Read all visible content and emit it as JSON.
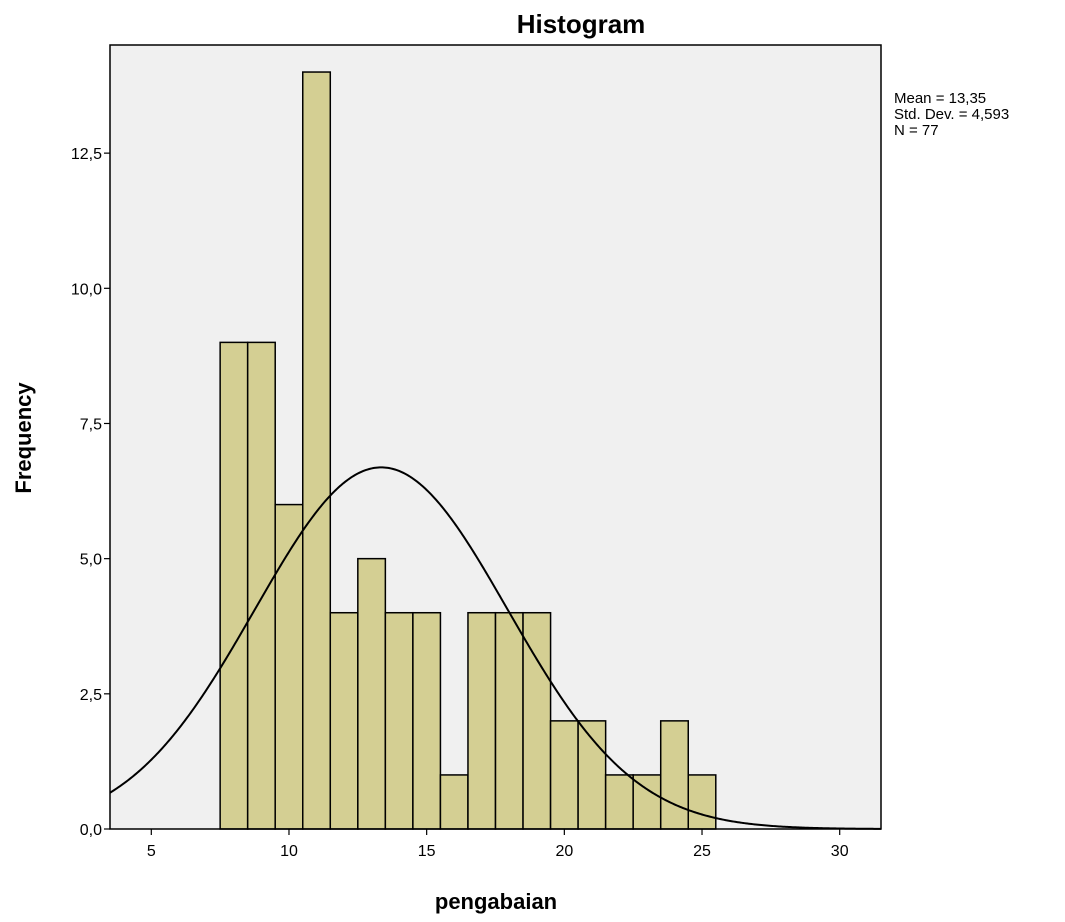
{
  "chart_data": {
    "type": "bar",
    "title": "Histogram",
    "xlabel": "pengabaian",
    "ylabel": "Frequency",
    "xlim": [
      3.5,
      31.5
    ],
    "ylim": [
      0,
      14.5
    ],
    "x_ticks": [
      {
        "value": 5,
        "label": "5"
      },
      {
        "value": 10,
        "label": "10"
      },
      {
        "value": 15,
        "label": "15"
      },
      {
        "value": 20,
        "label": "20"
      },
      {
        "value": 25,
        "label": "25"
      },
      {
        "value": 30,
        "label": "30"
      }
    ],
    "y_ticks": [
      {
        "value": 0,
        "label": "0,0"
      },
      {
        "value": 2.5,
        "label": "2,5"
      },
      {
        "value": 5,
        "label": "5,0"
      },
      {
        "value": 7.5,
        "label": "7,5"
      },
      {
        "value": 10,
        "label": "10,0"
      },
      {
        "value": 12.5,
        "label": "12,5"
      }
    ],
    "bin_width": 1,
    "bins": [
      {
        "x": 8,
        "count": 9
      },
      {
        "x": 9,
        "count": 9
      },
      {
        "x": 10,
        "count": 6
      },
      {
        "x": 11,
        "count": 14
      },
      {
        "x": 12,
        "count": 4
      },
      {
        "x": 13,
        "count": 5
      },
      {
        "x": 14,
        "count": 4
      },
      {
        "x": 15,
        "count": 4
      },
      {
        "x": 16,
        "count": 1
      },
      {
        "x": 17,
        "count": 4
      },
      {
        "x": 18,
        "count": 4
      },
      {
        "x": 19,
        "count": 4
      },
      {
        "x": 20,
        "count": 2
      },
      {
        "x": 21,
        "count": 2
      },
      {
        "x": 22,
        "count": 1
      },
      {
        "x": 23,
        "count": 1
      },
      {
        "x": 24,
        "count": 2
      },
      {
        "x": 25,
        "count": 1
      }
    ],
    "normal_curve": {
      "mean": 13.35,
      "std": 4.593,
      "n": 77
    },
    "stats_lines": [
      "Mean = 13,35",
      "Std. Dev. = 4,593",
      "N = 77"
    ],
    "colors": {
      "plot_bg": "#f0f0f0",
      "bar_fill": "#d4cf93",
      "bar_stroke": "#000000",
      "curve": "#000000"
    },
    "grid": false
  }
}
